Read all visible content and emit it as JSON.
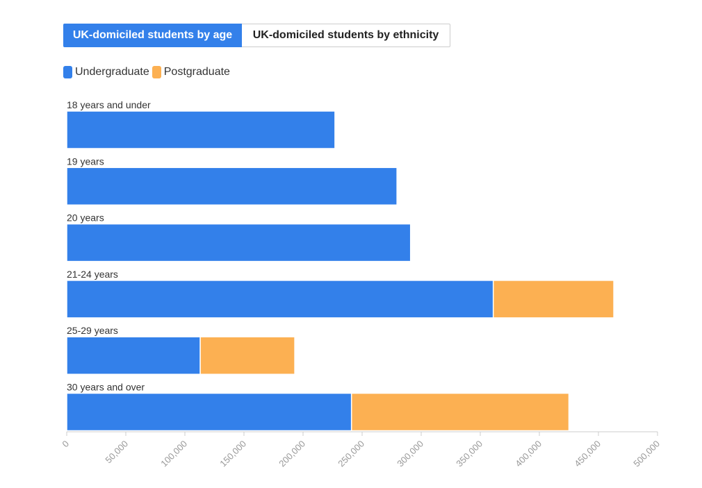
{
  "tabs": [
    {
      "label": "UK-domiciled students by age",
      "active": true
    },
    {
      "label": "UK-domiciled students by ethnicity",
      "active": false
    }
  ],
  "colors": {
    "undergraduate": "#3380ea",
    "postgraduate": "#fcb052",
    "tab_active": "#3380ea"
  },
  "legend": [
    {
      "label": "Undergraduate",
      "color": "#3380ea"
    },
    {
      "label": "Postgraduate",
      "color": "#fcb052"
    }
  ],
  "chart_data": {
    "type": "bar",
    "orientation": "horizontal",
    "stacked": true,
    "categories": [
      "18 years and under",
      "19 years",
      "20 years",
      "21-24 years",
      "25-29 years",
      "30 years and over"
    ],
    "series": [
      {
        "name": "Undergraduate",
        "values": [
          227000,
          279500,
          291000,
          361000,
          113000,
          241000
        ]
      },
      {
        "name": "Postgraduate",
        "values": [
          0,
          0,
          0,
          102000,
          80000,
          184000
        ]
      }
    ],
    "xlim": [
      0,
      500000
    ],
    "x_ticks": [
      "0",
      "50,000",
      "100,000",
      "150,000",
      "200,000",
      "250,000",
      "300,000",
      "350,000",
      "400,000",
      "450,000",
      "500,000"
    ],
    "legend_position": "top-left",
    "grid": false
  }
}
